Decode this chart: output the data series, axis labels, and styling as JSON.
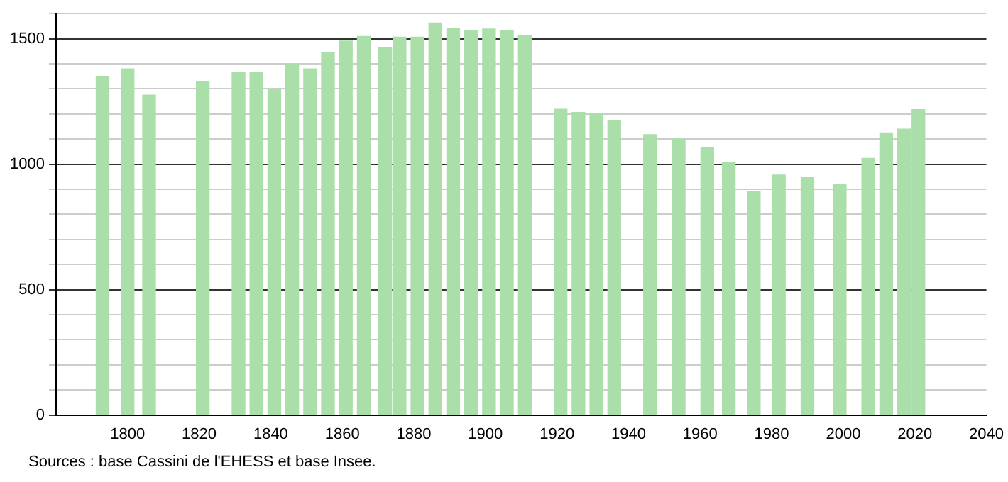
{
  "chart_data": {
    "type": "bar",
    "x": [
      1793,
      1800,
      1806,
      1821,
      1831,
      1836,
      1841,
      1846,
      1851,
      1856,
      1861,
      1866,
      1872,
      1876,
      1881,
      1886,
      1891,
      1896,
      1901,
      1906,
      1911,
      1921,
      1926,
      1931,
      1936,
      1946,
      1954,
      1962,
      1968,
      1975,
      1982,
      1990,
      1999,
      2007,
      2012,
      2017,
      2021
    ],
    "values": [
      1350,
      1380,
      1275,
      1330,
      1367,
      1367,
      1300,
      1398,
      1380,
      1445,
      1491,
      1509,
      1463,
      1506,
      1506,
      1563,
      1541,
      1533,
      1539,
      1533,
      1511,
      1219,
      1206,
      1199,
      1173,
      1118,
      1101,
      1066,
      1007,
      890,
      957,
      946,
      918,
      1023,
      1125,
      1140,
      1217
    ],
    "color": "#aadfaa",
    "xlim": [
      1780,
      2040
    ],
    "xticks": [
      1800,
      1820,
      1840,
      1860,
      1880,
      1900,
      1920,
      1940,
      1960,
      1980,
      2000,
      2020,
      2040
    ],
    "ylim": [
      0,
      1600
    ],
    "yticks": [
      0,
      {
        "value": 100,
        "label": null
      },
      {
        "value": 200,
        "label": null
      },
      {
        "value": 300,
        "label": null
      },
      {
        "value": 400,
        "label": null
      },
      500,
      {
        "value": 600,
        "label": null
      },
      {
        "value": 700,
        "label": null
      },
      {
        "value": 800,
        "label": null
      },
      {
        "value": 900,
        "label": null
      },
      1000,
      {
        "value": 1100,
        "label": null
      },
      {
        "value": 1200,
        "label": null
      },
      {
        "value": 1300,
        "label": null
      },
      {
        "value": 1400,
        "label": null
      },
      1500,
      {
        "value": 1600,
        "label": null
      }
    ],
    "grid": "y",
    "legend": false,
    "annotations": [
      "Sources : base Cassini de l'EHESS et base Insee."
    ]
  }
}
